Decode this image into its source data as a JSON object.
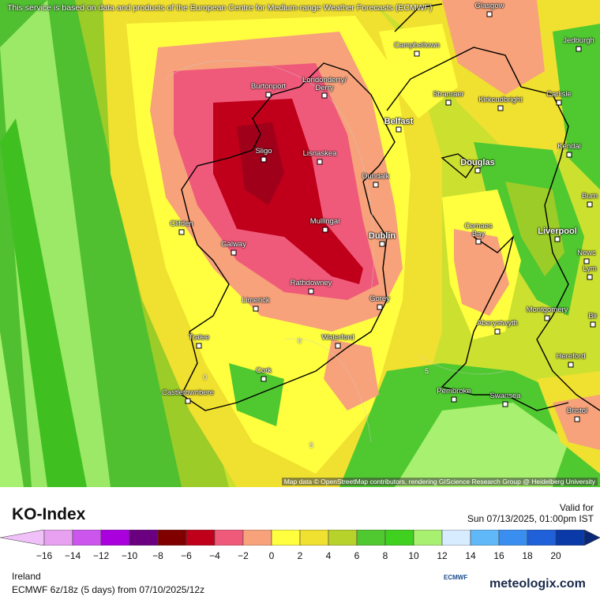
{
  "header": {
    "note": "This service is based on data and products of the European Centre for Medium-range Weather Forecasts (ECMWF)"
  },
  "map": {
    "attribution": "Map data © OpenStreetMap contributors, rendering GIScience Research Group @ Heidelberg University",
    "cities": [
      {
        "name": "Glasgow",
        "big": false
      },
      {
        "name": "Jedburgh",
        "big": false
      },
      {
        "name": "Campbeltown",
        "big": false
      },
      {
        "name": "Londonderry/\nDerry",
        "big": false
      },
      {
        "name": "Burtonport",
        "big": false
      },
      {
        "name": "Stranraer",
        "big": false
      },
      {
        "name": "Kirkcudbright",
        "big": false
      },
      {
        "name": "Carlisle",
        "big": false
      },
      {
        "name": "Belfast",
        "big": true
      },
      {
        "name": "Kendal",
        "big": false
      },
      {
        "name": "Sligo",
        "big": false
      },
      {
        "name": "Lisnaskea",
        "big": false
      },
      {
        "name": "Douglas",
        "big": true
      },
      {
        "name": "Dundalk",
        "big": false
      },
      {
        "name": "Burn",
        "big": false
      },
      {
        "name": "Mullingar",
        "big": false
      },
      {
        "name": "Clifden",
        "big": false
      },
      {
        "name": "Cemaes\nBay",
        "big": false
      },
      {
        "name": "Dublin",
        "big": true
      },
      {
        "name": "Liverpool",
        "big": true
      },
      {
        "name": "Galway",
        "big": false
      },
      {
        "name": "Newc",
        "big": false
      },
      {
        "name": "Lym",
        "big": false
      },
      {
        "name": "Rathdowney",
        "big": false
      },
      {
        "name": "Gorey",
        "big": false
      },
      {
        "name": "Limerick",
        "big": false
      },
      {
        "name": "Montgomery",
        "big": false
      },
      {
        "name": "Bir",
        "big": false
      },
      {
        "name": "Aberystwyth",
        "big": false
      },
      {
        "name": "Tralee",
        "big": false
      },
      {
        "name": "Waterford",
        "big": false
      },
      {
        "name": "Hereford",
        "big": false
      },
      {
        "name": "Cork",
        "big": false
      },
      {
        "name": "Castletownbere",
        "big": false
      },
      {
        "name": "Pembroke",
        "big": false
      },
      {
        "name": "Swansea",
        "big": false
      },
      {
        "name": "Bristol",
        "big": false
      }
    ],
    "contour_values": [
      "0",
      "0",
      "5",
      "5"
    ]
  },
  "legend": {
    "title": "KO-Index",
    "valid_label": "Valid for",
    "valid_time": "Sun 07/13/2025, 01:00pm IST",
    "ticks": [
      "−16",
      "−14",
      "−12",
      "−10",
      "−8",
      "−6",
      "−4",
      "−2",
      "0",
      "2",
      "4",
      "6",
      "8",
      "10",
      "12",
      "14",
      "16",
      "18",
      "20"
    ],
    "colors": [
      "#e8a0f0",
      "#cc55ee",
      "#aa00dd",
      "#6a0080",
      "#800000",
      "#c0001a",
      "#f05a7a",
      "#f7a27a",
      "#ffff40",
      "#f0e030",
      "#b8d22c",
      "#50c830",
      "#40d020",
      "#a8f070",
      "#d8ecff",
      "#60b8f8",
      "#3a8ef0",
      "#2060d8",
      "#0a3aa8"
    ],
    "region": "Ireland",
    "model_info": "ECMWF 6z/18z (5 days) from 07/10/2025/12z",
    "brand": "meteologix.com",
    "ecmwf_logo": "ECMWF"
  }
}
